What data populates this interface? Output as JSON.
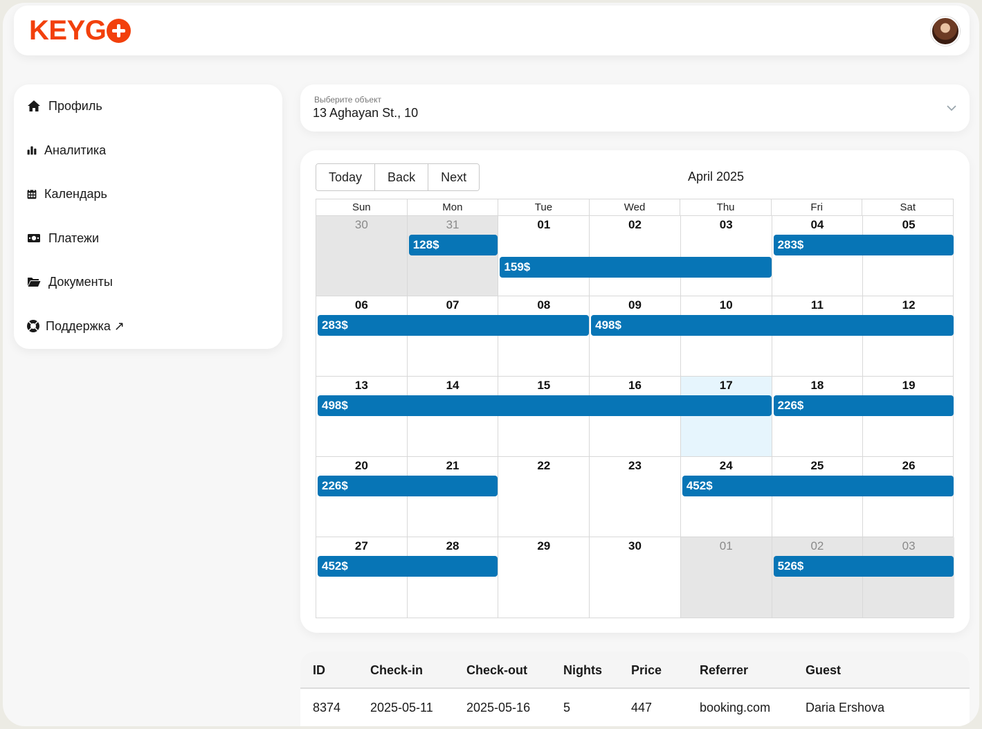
{
  "app": {
    "logo_text": "KEYG",
    "brand_color": "#f2400c",
    "avatar_icon": "user-avatar-photo"
  },
  "sidebar": {
    "items": [
      {
        "label": "Профиль",
        "icon": "home-icon"
      },
      {
        "label": "Аналитика",
        "icon": "bar-chart-icon"
      },
      {
        "label": "Календарь",
        "icon": "calendar-icon"
      },
      {
        "label": "Платежи",
        "icon": "money-icon"
      },
      {
        "label": "Документы",
        "icon": "folder-icon"
      },
      {
        "label": "Поддержка ↗",
        "icon": "lifebuoy-icon"
      }
    ]
  },
  "selector": {
    "label": "Выберите объект",
    "value": "13 Aghayan St., 10"
  },
  "calendar": {
    "toolbar": {
      "today": "Today",
      "back": "Back",
      "next": "Next"
    },
    "month_label": "April 2025",
    "accent_color": "#0775b6",
    "weekdays": [
      "Sun",
      "Mon",
      "Tue",
      "Wed",
      "Thu",
      "Fri",
      "Sat"
    ],
    "weeks": [
      {
        "days": [
          {
            "n": "30",
            "off": true
          },
          {
            "n": "31",
            "off": true
          },
          {
            "n": "01"
          },
          {
            "n": "02"
          },
          {
            "n": "03"
          },
          {
            "n": "04"
          },
          {
            "n": "05"
          }
        ],
        "events": [
          {
            "label": "128$",
            "start": 1,
            "end": 2,
            "lane": 0
          },
          {
            "label": "283$",
            "start": 5,
            "end": 7,
            "lane": 0
          },
          {
            "label": "159$",
            "start": 2,
            "end": 5,
            "lane": 1
          }
        ]
      },
      {
        "days": [
          {
            "n": "06"
          },
          {
            "n": "07"
          },
          {
            "n": "08"
          },
          {
            "n": "09"
          },
          {
            "n": "10"
          },
          {
            "n": "11"
          },
          {
            "n": "12"
          }
        ],
        "events": [
          {
            "label": "283$",
            "start": 0,
            "end": 3,
            "lane": 0
          },
          {
            "label": "498$",
            "start": 3,
            "end": 7,
            "lane": 0
          }
        ]
      },
      {
        "days": [
          {
            "n": "13"
          },
          {
            "n": "14"
          },
          {
            "n": "15"
          },
          {
            "n": "16"
          },
          {
            "n": "17",
            "today": true
          },
          {
            "n": "18"
          },
          {
            "n": "19"
          }
        ],
        "events": [
          {
            "label": "498$",
            "start": 0,
            "end": 5,
            "lane": 0
          },
          {
            "label": "226$",
            "start": 5,
            "end": 7,
            "lane": 0
          }
        ]
      },
      {
        "days": [
          {
            "n": "20"
          },
          {
            "n": "21"
          },
          {
            "n": "22"
          },
          {
            "n": "23"
          },
          {
            "n": "24"
          },
          {
            "n": "25"
          },
          {
            "n": "26"
          }
        ],
        "events": [
          {
            "label": "226$",
            "start": 0,
            "end": 2,
            "lane": 0
          },
          {
            "label": "452$",
            "start": 4,
            "end": 7,
            "lane": 0
          }
        ]
      },
      {
        "days": [
          {
            "n": "27"
          },
          {
            "n": "28"
          },
          {
            "n": "29"
          },
          {
            "n": "30"
          },
          {
            "n": "01",
            "off": true
          },
          {
            "n": "02",
            "off": true
          },
          {
            "n": "03",
            "off": true
          }
        ],
        "events": [
          {
            "label": "452$",
            "start": 0,
            "end": 2,
            "lane": 0
          },
          {
            "label": "526$",
            "start": 5,
            "end": 7,
            "lane": 0
          }
        ]
      }
    ]
  },
  "bookings": {
    "columns": [
      "ID",
      "Check-in",
      "Check-out",
      "Nights",
      "Price",
      "Referrer",
      "Guest"
    ],
    "rows": [
      [
        "8374",
        "2025-05-11",
        "2025-05-16",
        "5",
        "447",
        "booking.com",
        "Daria Ershova"
      ]
    ]
  }
}
